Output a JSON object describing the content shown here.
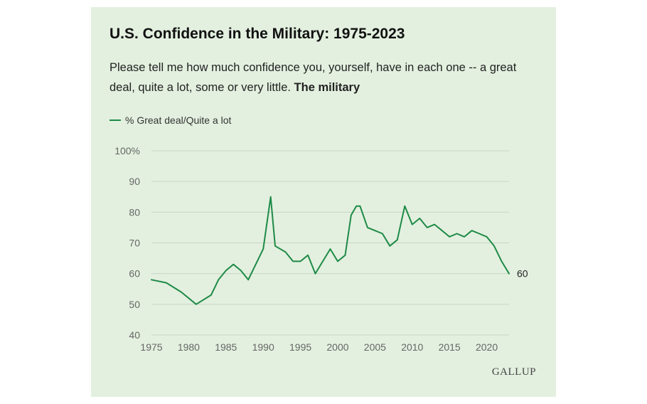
{
  "header": {
    "title": "U.S. Confidence in the Military: 1975-2023",
    "question": "Please tell me how much confidence you, yourself, have in each one -- a great deal, quite a lot, some or very little.",
    "institution": "The military"
  },
  "legend": {
    "label": "% Great deal/Quite a lot"
  },
  "logo": {
    "text": "GALLUP"
  },
  "colors": {
    "background": "#e3f0df",
    "line": "#1e8a47",
    "grid": "#c9d6c5"
  },
  "chart_data": {
    "type": "line",
    "title": "U.S. Confidence in the Military: 1975-2023",
    "xlabel": "",
    "ylabel": "",
    "xlim": [
      1975,
      2023
    ],
    "ylim": [
      40,
      100
    ],
    "x_ticks": [
      1975,
      1980,
      1985,
      1990,
      1995,
      2000,
      2005,
      2010,
      2015,
      2020
    ],
    "y_ticks": [
      {
        "value": 40,
        "label": "40"
      },
      {
        "value": 50,
        "label": "50"
      },
      {
        "value": 60,
        "label": "60"
      },
      {
        "value": 70,
        "label": "70"
      },
      {
        "value": 80,
        "label": "80"
      },
      {
        "value": 90,
        "label": "90"
      },
      {
        "value": 100,
        "label": "100%"
      }
    ],
    "grid": true,
    "end_label": "60",
    "series": [
      {
        "name": "% Great deal/Quite a lot",
        "x": [
          1975,
          1977,
          1979,
          1981,
          1983,
          1984,
          1985,
          1986,
          1987,
          1988,
          1989,
          1990,
          1991,
          1991.6,
          1993,
          1994,
          1995,
          1996,
          1997,
          1998,
          1999,
          2000,
          2001,
          2001.8,
          2002.5,
          2003,
          2004,
          2005,
          2006,
          2007,
          2008,
          2009,
          2010,
          2011,
          2012,
          2013,
          2014,
          2015,
          2016,
          2017,
          2018,
          2019,
          2020,
          2021,
          2022,
          2023
        ],
        "values": [
          58,
          57,
          54,
          50,
          53,
          58,
          61,
          63,
          61,
          58,
          63,
          68,
          85,
          69,
          67,
          64,
          64,
          66,
          60,
          64,
          68,
          64,
          66,
          79,
          82,
          82,
          75,
          74,
          73,
          69,
          71,
          82,
          76,
          78,
          75,
          76,
          74,
          72,
          73,
          72,
          74,
          73,
          72,
          69,
          64,
          60
        ]
      }
    ]
  }
}
